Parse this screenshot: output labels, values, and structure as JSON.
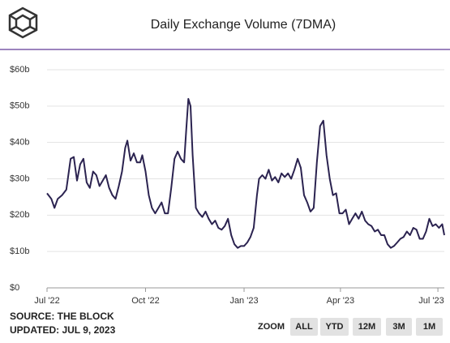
{
  "chart_data": {
    "type": "line",
    "title": "Daily Exchange Volume (7DMA)",
    "color": "#2b2350",
    "x": [
      0,
      4,
      7,
      10,
      14,
      18,
      22,
      25,
      28,
      31,
      34,
      37,
      40,
      43,
      46,
      49,
      52,
      55,
      58,
      61,
      64,
      67,
      70,
      73,
      75,
      78,
      81,
      84,
      87,
      89,
      92,
      95,
      98,
      101,
      104,
      107,
      110,
      113,
      116,
      119,
      122,
      125,
      128,
      130,
      132,
      134,
      136,
      139,
      142,
      145,
      148,
      151,
      154,
      157,
      160,
      163,
      166,
      169,
      172,
      175,
      178,
      181,
      184,
      187,
      190,
      193,
      196,
      198,
      201,
      204,
      207,
      210,
      213,
      216,
      219,
      222,
      225,
      228,
      231,
      234,
      237,
      240,
      243,
      246,
      249,
      252,
      255,
      258,
      261,
      264,
      267,
      270,
      273,
      276,
      279,
      282,
      285,
      288,
      291,
      294,
      297,
      300,
      303,
      306,
      309,
      312,
      315,
      318,
      321,
      324,
      327,
      330,
      333,
      336,
      339,
      342,
      345,
      348,
      351,
      354,
      357,
      360,
      363,
      366,
      369,
      371
    ],
    "values": [
      26,
      24.5,
      22,
      24.5,
      25.5,
      27,
      35.5,
      36,
      29.5,
      34,
      35.5,
      29,
      27.5,
      32,
      31,
      28,
      29.5,
      31,
      27.5,
      25.5,
      24.5,
      28,
      32,
      38.5,
      40.5,
      35,
      37,
      34.5,
      34.5,
      36.5,
      32,
      25.5,
      22,
      20.5,
      22,
      23.5,
      20.5,
      20.5,
      27.5,
      35.5,
      37.5,
      35.5,
      34.5,
      43.5,
      52,
      50,
      36.5,
      22,
      20.5,
      19.5,
      21,
      19,
      17.5,
      18.5,
      16.5,
      16,
      17,
      19,
      14.5,
      12,
      11,
      11.5,
      11.5,
      12.5,
      14,
      16.5,
      25.5,
      30,
      31,
      30,
      32.5,
      29.5,
      30.5,
      29,
      31.5,
      30.5,
      31.5,
      30,
      32.5,
      35.5,
      33,
      25.5,
      23.5,
      21,
      22,
      34.5,
      44.5,
      46,
      36.5,
      30,
      25.5,
      26,
      20.5,
      20.5,
      21.5,
      17.5,
      19,
      20.5,
      19,
      21,
      18.5,
      17.5,
      17,
      15.5,
      16,
      14.5,
      14.5,
      12,
      11,
      11.5,
      12.5,
      13.5,
      14,
      15.5,
      14.5,
      16.5,
      16,
      13.5,
      13.5,
      15.5,
      19,
      17,
      17.5,
      16.5,
      17.5,
      14.5
    ],
    "xlim": [
      0,
      371
    ],
    "xticks": [
      {
        "value": 0,
        "label": "Jul '22"
      },
      {
        "value": 92,
        "label": "Oct '22"
      },
      {
        "value": 184,
        "label": "Jan '23"
      },
      {
        "value": 274,
        "label": "Apr '23"
      },
      {
        "value": 365,
        "label": "Jul '23"
      }
    ],
    "ylim": [
      0,
      60
    ],
    "yticks": [
      {
        "value": 0,
        "label": "$0"
      },
      {
        "value": 10,
        "label": "$10b"
      },
      {
        "value": 20,
        "label": "$20b"
      },
      {
        "value": 30,
        "label": "$30b"
      },
      {
        "value": 40,
        "label": "$40b"
      },
      {
        "value": 50,
        "label": "$50b"
      },
      {
        "value": 60,
        "label": "$60b"
      }
    ],
    "grid": true
  },
  "footer": {
    "source": "SOURCE: THE BLOCK",
    "updated": "UPDATED: JUL 9, 2023"
  },
  "zoom": {
    "label": "ZOOM",
    "buttons": [
      "ALL",
      "YTD",
      "12M",
      "3M",
      "1M"
    ]
  }
}
